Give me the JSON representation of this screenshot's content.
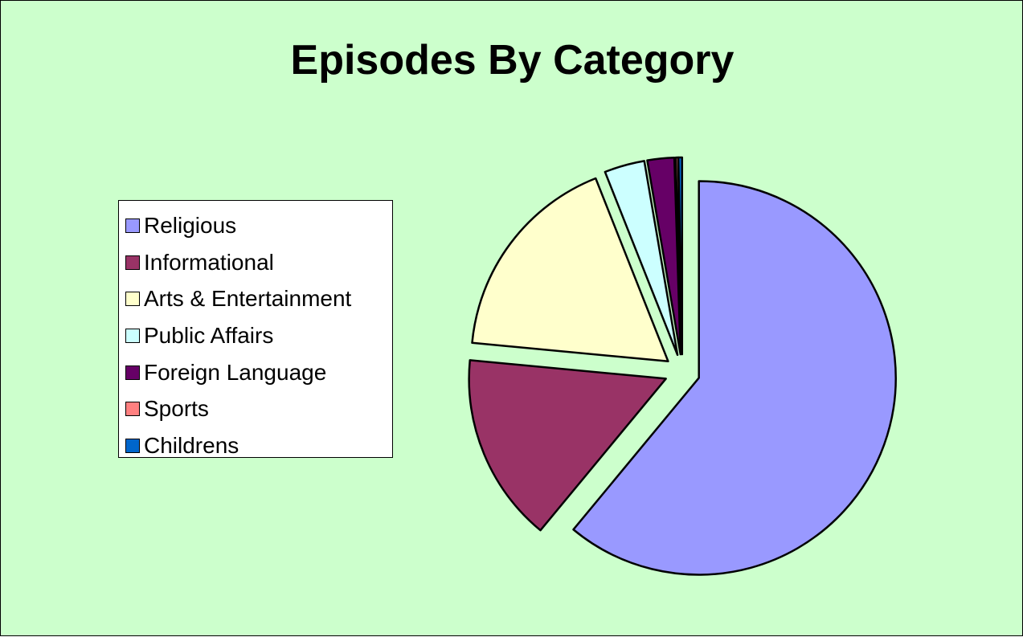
{
  "chart_data": {
    "type": "pie",
    "title": "Episodes By Category",
    "legend_position": "left",
    "exploded": true,
    "categories": [
      "Religious",
      "Informational",
      "Arts & Entertainment",
      "Public Affairs",
      "Foreign Language",
      "Sports",
      "Childrens"
    ],
    "values": [
      61.0,
      15.5,
      17.5,
      3.3,
      2.2,
      0.2,
      0.3
    ],
    "unit": "percent of episodes (estimated)",
    "colors": [
      "#9999ff",
      "#993366",
      "#ffffcc",
      "#ccffff",
      "#660066",
      "#ff8080",
      "#0066cc"
    ]
  },
  "background_color": "#ccffcc"
}
